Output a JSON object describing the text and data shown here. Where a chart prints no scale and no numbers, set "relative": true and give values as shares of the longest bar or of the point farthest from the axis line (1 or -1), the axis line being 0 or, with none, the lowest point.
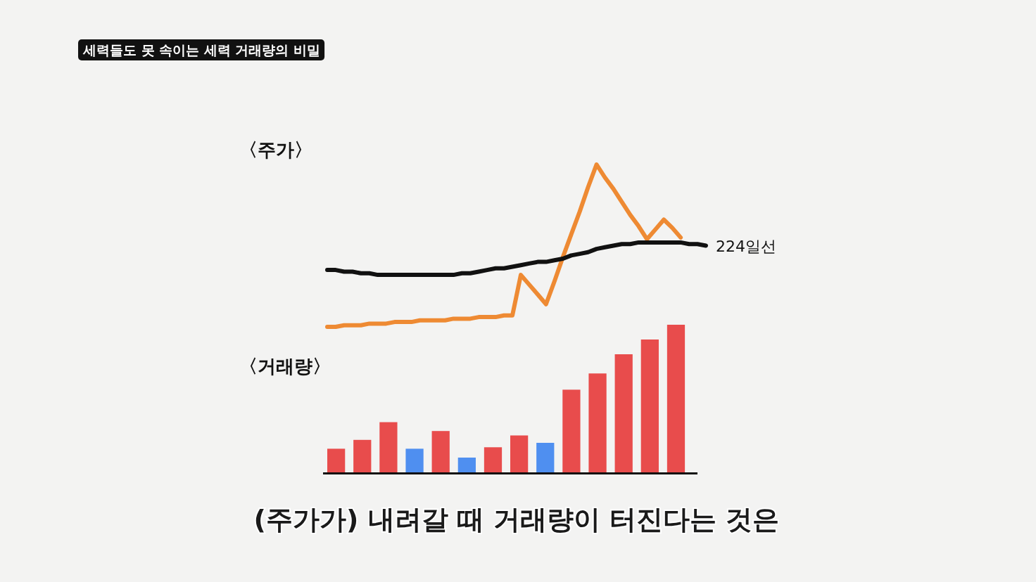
{
  "chart_data": [
    {
      "type": "other",
      "title": "세력들도 못 속이는 세력 거래량의 비밀"
    },
    {
      "type": "line",
      "title": "〈주가〉",
      "relative": true,
      "categories": [
        null,
        null,
        null,
        null,
        null,
        null,
        null,
        null,
        null,
        null,
        null,
        null,
        null,
        null,
        null,
        null,
        null,
        null,
        null,
        null,
        null,
        null,
        null,
        null,
        null,
        null,
        null,
        null,
        null,
        null,
        null,
        null,
        null,
        null,
        null,
        null,
        null,
        null,
        null,
        null,
        null,
        null,
        null,
        null,
        null,
        null
      ],
      "series": [
        {
          "color": "#ee8a33",
          "values": [
            0,
            0,
            0.01,
            0.01,
            0.01,
            0.02,
            0.02,
            0.02,
            0.03,
            0.03,
            0.03,
            0.04,
            0.04,
            0.04,
            0.04,
            0.05,
            0.05,
            0.05,
            0.06,
            0.06,
            0.06,
            0.07,
            0.07,
            0.32,
            0.26,
            0.2,
            0.14,
            0.28,
            0.43,
            0.57,
            0.71,
            0.86,
            1.0,
            0.92,
            0.85,
            0.77,
            0.69,
            0.62,
            0.54,
            0.6,
            0.66,
            0.61,
            0.55,
            null,
            null,
            null
          ]
        },
        {
          "name": "224일선",
          "color": "#111111",
          "values": [
            0.35,
            0.35,
            0.34,
            0.34,
            0.33,
            0.33,
            0.32,
            0.32,
            0.32,
            0.32,
            0.32,
            0.32,
            0.32,
            0.32,
            0.32,
            0.32,
            0.33,
            0.33,
            0.34,
            0.35,
            0.36,
            0.36,
            0.37,
            0.38,
            0.39,
            0.4,
            0.4,
            0.41,
            0.42,
            0.44,
            0.45,
            0.46,
            0.48,
            0.49,
            0.5,
            0.51,
            0.51,
            0.52,
            0.52,
            0.52,
            0.52,
            0.52,
            0.52,
            0.51,
            0.51,
            0.5
          ]
        }
      ]
    },
    {
      "type": "bar",
      "title": "〈거래량〉",
      "annotations": [
        "(주가가) 내려갈 때 거래량이 터진다는 것은"
      ],
      "relative": true,
      "categories": [
        null,
        null,
        null,
        null,
        null,
        null,
        null,
        null,
        null,
        null,
        null,
        null,
        null,
        null
      ],
      "values": [
        0.16,
        0.22,
        0.34,
        0.16,
        0.28,
        0.1,
        0.17,
        0.25,
        0.2,
        0.56,
        0.67,
        0.8,
        0.9,
        1.0
      ],
      "colors": [
        "#e84c4c",
        "#e84c4c",
        "#e84c4c",
        "#4f8ff0",
        "#e84c4c",
        "#4f8ff0",
        "#e84c4c",
        "#e84c4c",
        "#4f8ff0",
        "#e84c4c",
        "#e84c4c",
        "#e84c4c",
        "#e84c4c",
        "#e84c4c"
      ]
    }
  ]
}
